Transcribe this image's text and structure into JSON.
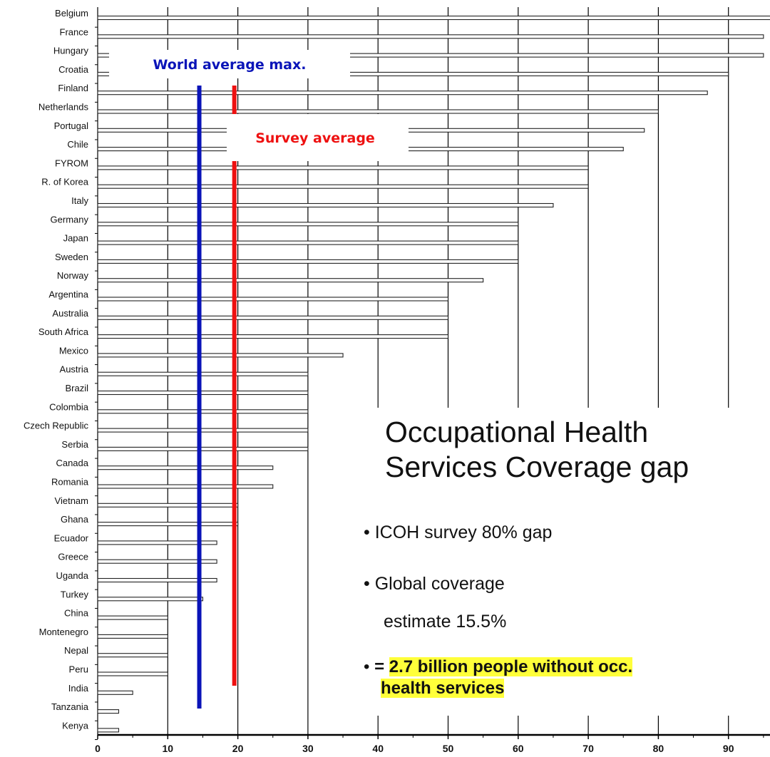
{
  "chart_data": {
    "type": "bar",
    "orientation": "horizontal",
    "categories": [
      "Belgium",
      "France",
      "Hungary",
      "Croatia",
      "Finland",
      "Netherlands",
      "Portugal",
      "Chile",
      "FYROM",
      "R. of Korea",
      "Italy",
      "Germany",
      "Japan",
      "Sweden",
      "Norway",
      "Argentina",
      "Australia",
      "South Africa",
      "Mexico",
      "Austria",
      "Brazil",
      "Colombia",
      "Czech Republic",
      "Serbia",
      "Canada",
      "Romania",
      "Vietnam",
      "Ghana",
      "Ecuador",
      "Greece",
      "Uganda",
      "Turkey",
      "China",
      "Montenegro",
      "Nepal",
      "Peru",
      "India",
      "Tanzania",
      "Kenya"
    ],
    "values": [
      96,
      95,
      95,
      90,
      87,
      80,
      78,
      75,
      70,
      70,
      65,
      60,
      60,
      60,
      55,
      50,
      50,
      50,
      35,
      30,
      30,
      30,
      30,
      30,
      25,
      25,
      20,
      20,
      17,
      17,
      17,
      15,
      10,
      10,
      10,
      10,
      5,
      3,
      3
    ],
    "xlim": [
      0,
      96
    ],
    "x_ticks": [
      "0",
      "10",
      "20",
      "30",
      "40",
      "50",
      "60",
      "70",
      "80",
      "90"
    ],
    "grid": true,
    "reference_lines": [
      {
        "label": "World average max.",
        "value": 14.5,
        "color": "#0a14b8"
      },
      {
        "label": "Survey average",
        "value": 19.5,
        "color": "#ee1111"
      }
    ]
  },
  "textbox": {
    "title_line1": "Occupational Health",
    "title_line2": "Services Coverage gap",
    "bullet_char": "•",
    "bullet1": "ICOH survey 80% gap",
    "bullet2": "Global coverage",
    "bullet2_cont": "estimate 15.5%",
    "bullet3_prefix": "= ",
    "bullet3_hl1": "2.7 billion people without occ.",
    "bullet3_hl2": "health services",
    "highlight_color": "#ffff3a"
  }
}
